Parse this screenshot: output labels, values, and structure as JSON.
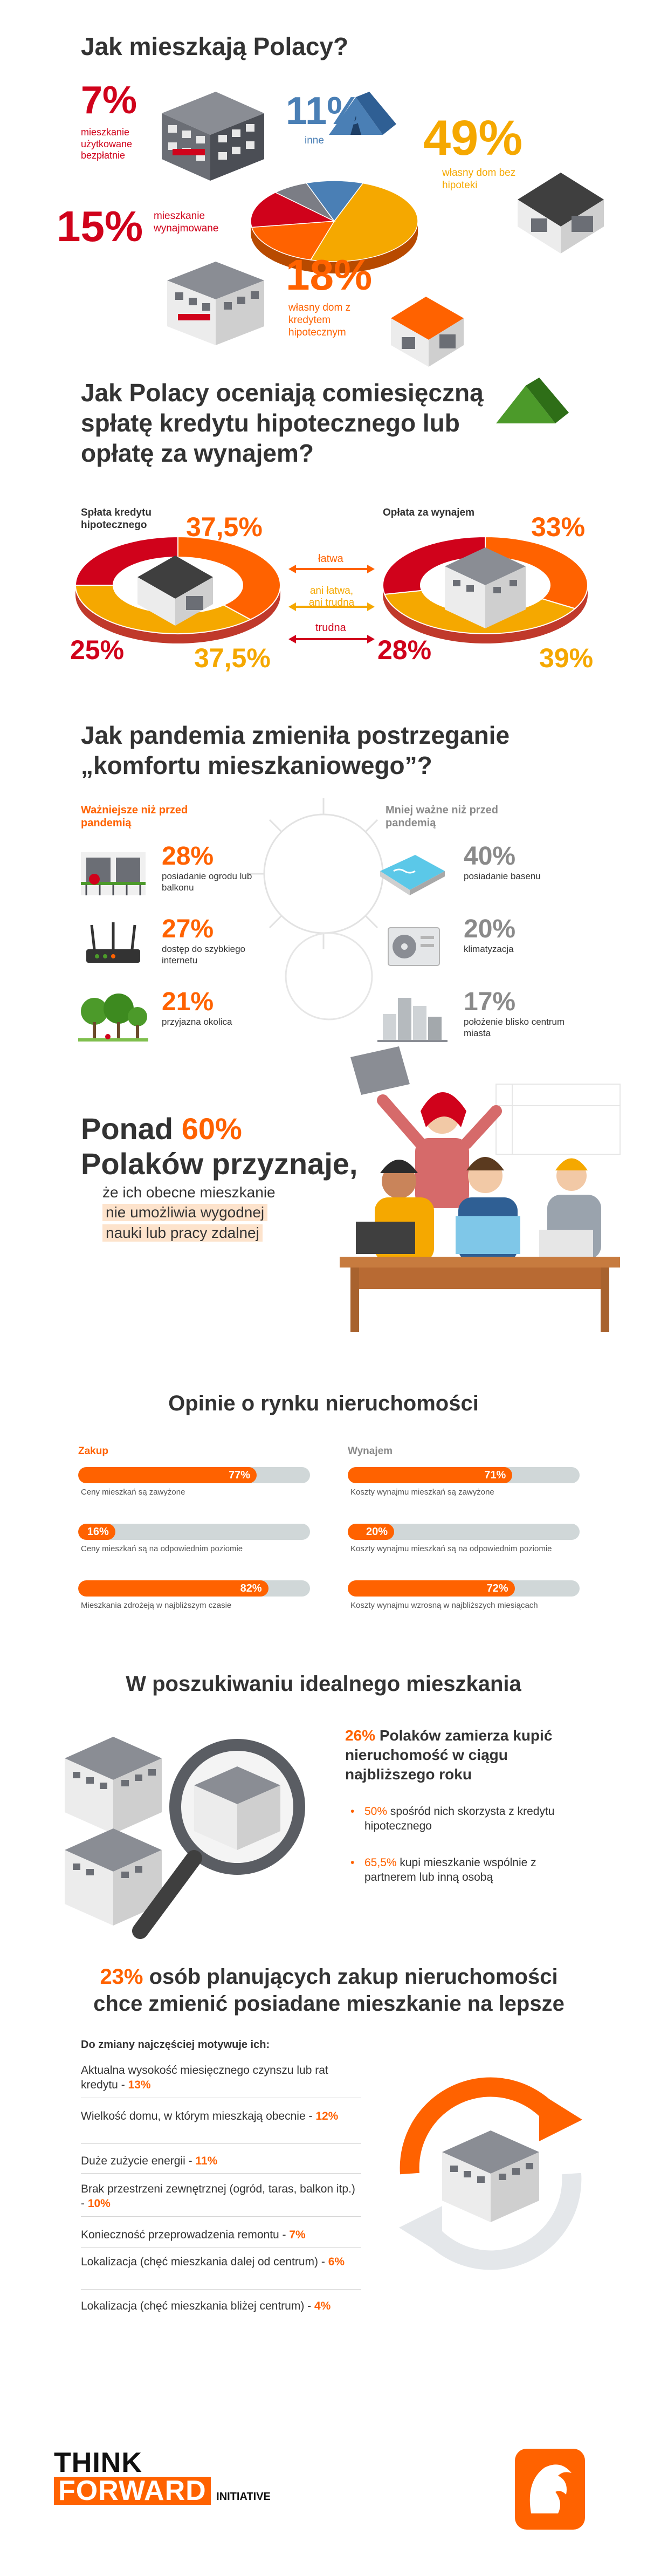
{
  "s1": {
    "title": "Jak mieszkają Polacy?",
    "items": [
      {
        "value": "7%",
        "label": "mieszkanie użytkowane bezpłatnie"
      },
      {
        "value": "11%",
        "label": "inne"
      },
      {
        "value": "49%",
        "label": "własny dom bez hipoteki"
      },
      {
        "value": "15%",
        "label": "mieszkanie wynajmowane"
      },
      {
        "value": "18%",
        "label": "własny dom z kredytem hipotecznym"
      }
    ]
  },
  "chart_data": {
    "type": "pie",
    "categories": [
      "własny dom bez hipoteki",
      "własny dom z kredytem hipotecznym",
      "mieszkanie wynajmowane",
      "mieszkanie użytkowane bezpłatnie",
      "inne"
    ],
    "values": [
      49,
      18,
      15,
      7,
      11
    ],
    "colors": [
      "#f5a800",
      "#ff6200",
      "#d0021b",
      "#7b7d85",
      "#4a7fb5"
    ]
  },
  "s2": {
    "title": "Jak Polacy oceniają comiesięczną spłatę kredytu hipotecznego lub opłatę za wynajem?",
    "left_label": "Spłata kredytu hipotecznego",
    "right_label": "Opłata za wynajem",
    "left": {
      "easy": "37,5%",
      "neutral": "37,5%",
      "hard": "25%"
    },
    "right": {
      "easy": "33%",
      "neutral": "39%",
      "hard": "28%"
    },
    "left_values": [
      37.5,
      37.5,
      25
    ],
    "right_values": [
      33,
      39,
      28
    ],
    "legend": {
      "easy": "łatwa",
      "neutral": "ani łatwa, ani trudna",
      "hard": "trudna"
    }
  },
  "s3": {
    "title": "Jak pandemia zmieniła postrzeganie „komfortu mieszkaniowego”?",
    "left_head": "Ważniejsze niż przed pandemią",
    "right_head": "Mniej ważne niż przed pandemią",
    "left": [
      {
        "value": "28%",
        "label": "posiadanie ogrodu lub balkonu"
      },
      {
        "value": "27%",
        "label": "dostęp do szybkiego internetu"
      },
      {
        "value": "21%",
        "label": "przyjazna okolica"
      }
    ],
    "right": [
      {
        "value": "40%",
        "label": "posiadanie basenu"
      },
      {
        "value": "20%",
        "label": "klimatyzacja"
      },
      {
        "value": "17%",
        "label": "położenie blisko centrum miasta"
      }
    ]
  },
  "s4": {
    "line1_a": "Ponad ",
    "line1_b": "60%",
    "line2": "Polaków przyznaje,",
    "line3": "że ich obecne mieszkanie",
    "line4": "nie umożliwia wygodnej",
    "line5": "nauki lub pracy zdalnej"
  },
  "s5": {
    "title": "Opinie o rynku nieruchomości",
    "left_head": "Zakup",
    "right_head": "Wynajem",
    "left": [
      {
        "value": 77,
        "text": "77%",
        "label": "Ceny mieszkań są zawyżone"
      },
      {
        "value": 16,
        "text": "16%",
        "label": "Ceny mieszkań są na odpowiednim poziomie"
      },
      {
        "value": 82,
        "text": "82%",
        "label": "Mieszkania zdrożeją w najbliższym czasie"
      }
    ],
    "right": [
      {
        "value": 71,
        "text": "71%",
        "label": "Koszty wynajmu mieszkań są zawyżone"
      },
      {
        "value": 20,
        "text": "20%",
        "label": "Koszty wynajmu mieszkań są na odpowiednim poziomie"
      },
      {
        "value": 72,
        "text": "72%",
        "label": "Koszty wynajmu wzrosną w najbliższych miesiącach"
      }
    ]
  },
  "s6": {
    "title": "W poszukiwaniu idealnego mieszkania",
    "main_a": "26%",
    "main_b": " Polaków zamierza kupić nieruchomość w ciągu najbliższego roku",
    "b1_a": "50%",
    "b1_b": " spośród nich skorzysta z kredytu hipotecznego",
    "b2_a": "65,5%",
    "b2_b": " kupi mieszkanie wspólnie z partnerem lub inną osobą"
  },
  "s7": {
    "title_a": "23%",
    "title_b": " osób planujących zakup nieruchomości",
    "title_c": "chce zmienić posiadane mieszkanie na lepsze",
    "sub": "Do zmiany najczęściej motywuje ich:",
    "reasons": [
      {
        "text": "Aktualna wysokość miesięcznego czynszu lub rat kredytu - ",
        "value": "13%"
      },
      {
        "text": "Wielkość domu, w którym mieszkają obecnie - ",
        "value": "12%"
      },
      {
        "text": "Duże zużycie energii - ",
        "value": "11%"
      },
      {
        "text": "Brak przestrzeni zewnętrznej (ogród, taras, balkon itp.) - ",
        "value": "10%"
      },
      {
        "text": "Konieczność przeprowadzenia remontu - ",
        "value": "7%"
      },
      {
        "text": "Lokalizacja (chęć mieszkania dalej od centrum) - ",
        "value": "6%"
      },
      {
        "text": "Lokalizacja (chęć mieszkania bliżej centrum) - ",
        "value": "4%"
      }
    ]
  },
  "footer": {
    "think": "THINK",
    "forward": "FORWARD",
    "initiative": "INITIATIVE"
  },
  "colors": {
    "orange": "#ff6200",
    "red": "#d0021b",
    "yellow": "#f5a800",
    "blue": "#4a7fb5",
    "grey": "#7b7d85"
  }
}
